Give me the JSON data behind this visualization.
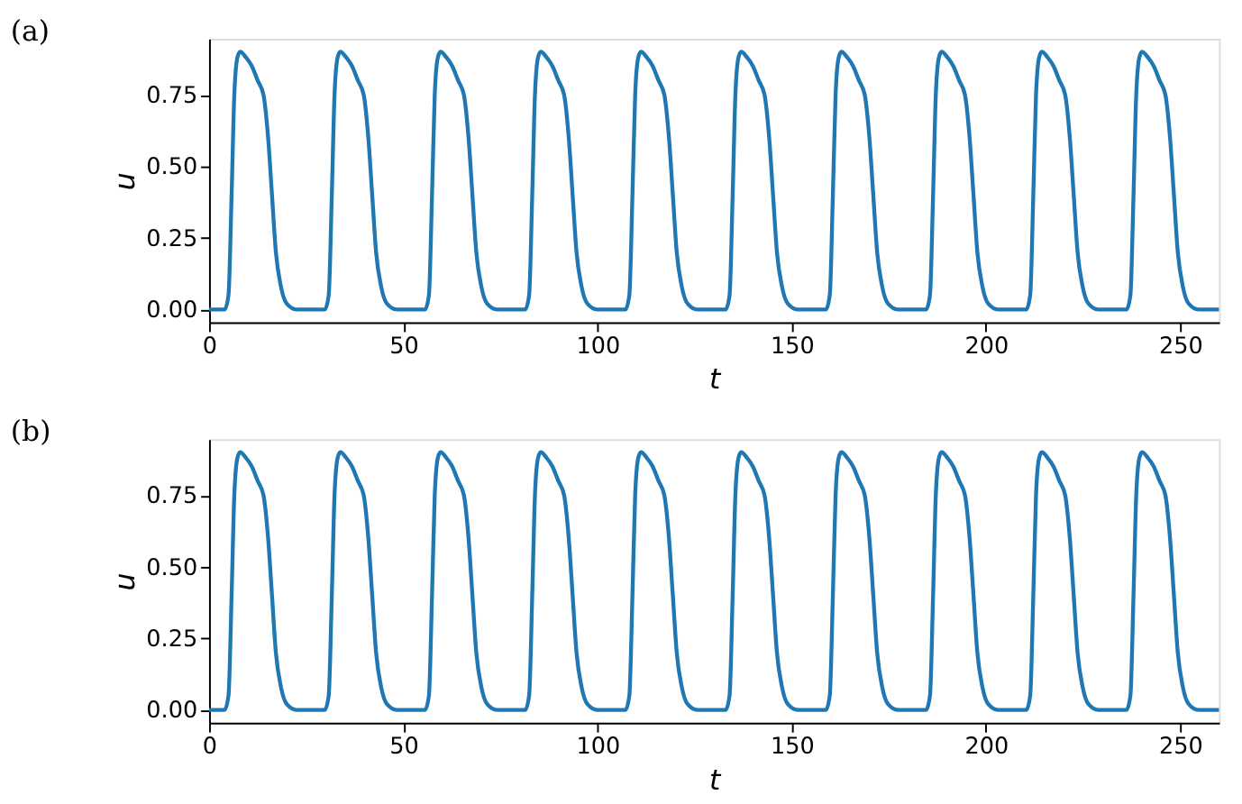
{
  "chart_data": [
    {
      "type": "line",
      "title": "(a)",
      "xlabel": "t",
      "ylabel": "u",
      "xlim": [
        0,
        260
      ],
      "ylim": [
        -0.045,
        0.945
      ],
      "xticks": [
        0,
        50,
        100,
        150,
        200,
        250
      ],
      "yticks": [
        {
          "value": 0,
          "label": "0.00"
        },
        {
          "value": 0.25,
          "label": "0.25"
        },
        {
          "value": 0.5,
          "label": "0.50"
        },
        {
          "value": 0.75,
          "label": "0.75"
        }
      ],
      "grid": false,
      "marker": "none",
      "line_style": "solid",
      "x": [
        0,
        4,
        5,
        5.8,
        6.5,
        7.3,
        8,
        9.5,
        11,
        12.5,
        14,
        15.2,
        16.2,
        17.2,
        18.5,
        20,
        22.5,
        29.8,
        30.8,
        31.6,
        32.3,
        33.1,
        33.8,
        35.3,
        36.8,
        38.3,
        39.8,
        41,
        42,
        43,
        44.3,
        45.8,
        48.3,
        55.6,
        56.6,
        57.4,
        58.1,
        58.9,
        59.6,
        61.1,
        62.6,
        64.1,
        65.6,
        66.8,
        67.8,
        68.8,
        70.1,
        71.6,
        74.1,
        81.4,
        82.4,
        83.2,
        83.9,
        84.7,
        85.4,
        86.9,
        88.4,
        89.9,
        91.4,
        92.6,
        93.6,
        94.6,
        95.9,
        97.4,
        99.9,
        107.2,
        108.2,
        109,
        109.7,
        110.5,
        111.2,
        112.7,
        114.2,
        115.7,
        117.2,
        118.4,
        119.4,
        120.4,
        121.7,
        123.2,
        125.7,
        133,
        134,
        134.8,
        135.5,
        136.3,
        137,
        138.5,
        140,
        141.5,
        143,
        144.2,
        145.2,
        146.2,
        147.5,
        149,
        151.5,
        158.8,
        159.8,
        160.6,
        161.3,
        162.1,
        162.8,
        164.3,
        165.8,
        167.3,
        168.8,
        170,
        171,
        172,
        173.3,
        174.8,
        177.3,
        184.6,
        185.6,
        186.4,
        187.1,
        187.9,
        188.6,
        190.1,
        191.6,
        193.1,
        194.6,
        195.8,
        196.8,
        197.8,
        199.1,
        200.6,
        203.1,
        210.4,
        211.4,
        212.2,
        212.9,
        213.7,
        214.4,
        215.9,
        217.4,
        218.9,
        220.4,
        221.6,
        222.6,
        223.6,
        224.9,
        226.4,
        228.9,
        236.2,
        237.2,
        238,
        238.7,
        239.5,
        240.2,
        241.7,
        243.2,
        244.7,
        246.2,
        247.4,
        248.4,
        249.4,
        250.7,
        252.2,
        254.7,
        260
      ],
      "series": [
        {
          "color": "#1f77b4",
          "values": [
            0,
            0,
            0.05,
            0.4,
            0.75,
            0.88,
            0.9,
            0.88,
            0.85,
            0.8,
            0.75,
            0.6,
            0.4,
            0.2,
            0.08,
            0.02,
            0,
            0,
            0.05,
            0.4,
            0.75,
            0.88,
            0.9,
            0.88,
            0.85,
            0.8,
            0.75,
            0.6,
            0.4,
            0.2,
            0.08,
            0.02,
            0,
            0,
            0.05,
            0.4,
            0.75,
            0.88,
            0.9,
            0.88,
            0.85,
            0.8,
            0.75,
            0.6,
            0.4,
            0.2,
            0.08,
            0.02,
            0,
            0,
            0.05,
            0.4,
            0.75,
            0.88,
            0.9,
            0.88,
            0.85,
            0.8,
            0.75,
            0.6,
            0.4,
            0.2,
            0.08,
            0.02,
            0,
            0,
            0.05,
            0.4,
            0.75,
            0.88,
            0.9,
            0.88,
            0.85,
            0.8,
            0.75,
            0.6,
            0.4,
            0.2,
            0.08,
            0.02,
            0,
            0,
            0.05,
            0.4,
            0.75,
            0.88,
            0.9,
            0.88,
            0.85,
            0.8,
            0.75,
            0.6,
            0.4,
            0.2,
            0.08,
            0.02,
            0,
            0,
            0.05,
            0.4,
            0.75,
            0.88,
            0.9,
            0.88,
            0.85,
            0.8,
            0.75,
            0.6,
            0.4,
            0.2,
            0.08,
            0.02,
            0,
            0,
            0.05,
            0.4,
            0.75,
            0.88,
            0.9,
            0.88,
            0.85,
            0.8,
            0.75,
            0.6,
            0.4,
            0.2,
            0.08,
            0.02,
            0,
            0,
            0.05,
            0.4,
            0.75,
            0.88,
            0.9,
            0.88,
            0.85,
            0.8,
            0.75,
            0.6,
            0.4,
            0.2,
            0.08,
            0.02,
            0,
            0,
            0.05,
            0.4,
            0.75,
            0.88,
            0.9,
            0.88,
            0.85,
            0.8,
            0.75,
            0.6,
            0.4,
            0.2,
            0.08,
            0.02,
            0,
            0
          ]
        }
      ]
    },
    {
      "type": "line",
      "title": "(b)",
      "xlabel": "t",
      "ylabel": "u",
      "xlim": [
        0,
        260
      ],
      "ylim": [
        -0.045,
        0.945
      ],
      "xticks": [
        0,
        50,
        100,
        150,
        200,
        250
      ],
      "yticks": [
        {
          "value": 0,
          "label": "0.00"
        },
        {
          "value": 0.25,
          "label": "0.25"
        },
        {
          "value": 0.5,
          "label": "0.50"
        },
        {
          "value": 0.75,
          "label": "0.75"
        }
      ],
      "grid": false,
      "marker": "none",
      "line_style": "solid",
      "x": [
        0,
        4,
        5,
        5.8,
        6.5,
        7.3,
        8,
        9.5,
        11,
        12.5,
        14,
        15.2,
        16.2,
        17.2,
        18.5,
        20,
        22.5,
        29.8,
        30.8,
        31.6,
        32.3,
        33.1,
        33.8,
        35.3,
        36.8,
        38.3,
        39.8,
        41,
        42,
        43,
        44.3,
        45.8,
        48.3,
        55.6,
        56.6,
        57.4,
        58.1,
        58.9,
        59.6,
        61.1,
        62.6,
        64.1,
        65.6,
        66.8,
        67.8,
        68.8,
        70.1,
        71.6,
        74.1,
        81.4,
        82.4,
        83.2,
        83.9,
        84.7,
        85.4,
        86.9,
        88.4,
        89.9,
        91.4,
        92.6,
        93.6,
        94.6,
        95.9,
        97.4,
        99.9,
        107.2,
        108.2,
        109,
        109.7,
        110.5,
        111.2,
        112.7,
        114.2,
        115.7,
        117.2,
        118.4,
        119.4,
        120.4,
        121.7,
        123.2,
        125.7,
        133,
        134,
        134.8,
        135.5,
        136.3,
        137,
        138.5,
        140,
        141.5,
        143,
        144.2,
        145.2,
        146.2,
        147.5,
        149,
        151.5,
        158.8,
        159.8,
        160.6,
        161.3,
        162.1,
        162.8,
        164.3,
        165.8,
        167.3,
        168.8,
        170,
        171,
        172,
        173.3,
        174.8,
        177.3,
        184.6,
        185.6,
        186.4,
        187.1,
        187.9,
        188.6,
        190.1,
        191.6,
        193.1,
        194.6,
        195.8,
        196.8,
        197.8,
        199.1,
        200.6,
        203.1,
        210.4,
        211.4,
        212.2,
        212.9,
        213.7,
        214.4,
        215.9,
        217.4,
        218.9,
        220.4,
        221.6,
        222.6,
        223.6,
        224.9,
        226.4,
        228.9,
        236.2,
        237.2,
        238,
        238.7,
        239.5,
        240.2,
        241.7,
        243.2,
        244.7,
        246.2,
        247.4,
        248.4,
        249.4,
        250.7,
        252.2,
        254.7,
        260
      ],
      "series": [
        {
          "color": "#1f77b4",
          "values": [
            0,
            0,
            0.05,
            0.4,
            0.75,
            0.88,
            0.9,
            0.88,
            0.85,
            0.8,
            0.75,
            0.6,
            0.4,
            0.2,
            0.08,
            0.02,
            0,
            0,
            0.05,
            0.4,
            0.75,
            0.88,
            0.9,
            0.88,
            0.85,
            0.8,
            0.75,
            0.6,
            0.4,
            0.2,
            0.08,
            0.02,
            0,
            0,
            0.05,
            0.4,
            0.75,
            0.88,
            0.9,
            0.88,
            0.85,
            0.8,
            0.75,
            0.6,
            0.4,
            0.2,
            0.08,
            0.02,
            0,
            0,
            0.05,
            0.4,
            0.75,
            0.88,
            0.9,
            0.88,
            0.85,
            0.8,
            0.75,
            0.6,
            0.4,
            0.2,
            0.08,
            0.02,
            0,
            0,
            0.05,
            0.4,
            0.75,
            0.88,
            0.9,
            0.88,
            0.85,
            0.8,
            0.75,
            0.6,
            0.4,
            0.2,
            0.08,
            0.02,
            0,
            0,
            0.05,
            0.4,
            0.75,
            0.88,
            0.9,
            0.88,
            0.85,
            0.8,
            0.75,
            0.6,
            0.4,
            0.2,
            0.08,
            0.02,
            0,
            0,
            0.05,
            0.4,
            0.75,
            0.88,
            0.9,
            0.88,
            0.85,
            0.8,
            0.75,
            0.6,
            0.4,
            0.2,
            0.08,
            0.02,
            0,
            0,
            0.05,
            0.4,
            0.75,
            0.88,
            0.9,
            0.88,
            0.85,
            0.8,
            0.75,
            0.6,
            0.4,
            0.2,
            0.08,
            0.02,
            0,
            0,
            0.05,
            0.4,
            0.75,
            0.88,
            0.9,
            0.88,
            0.85,
            0.8,
            0.75,
            0.6,
            0.4,
            0.2,
            0.08,
            0.02,
            0,
            0,
            0.05,
            0.4,
            0.75,
            0.88,
            0.9,
            0.88,
            0.85,
            0.8,
            0.75,
            0.6,
            0.4,
            0.2,
            0.08,
            0.02,
            0,
            0
          ]
        }
      ]
    }
  ]
}
